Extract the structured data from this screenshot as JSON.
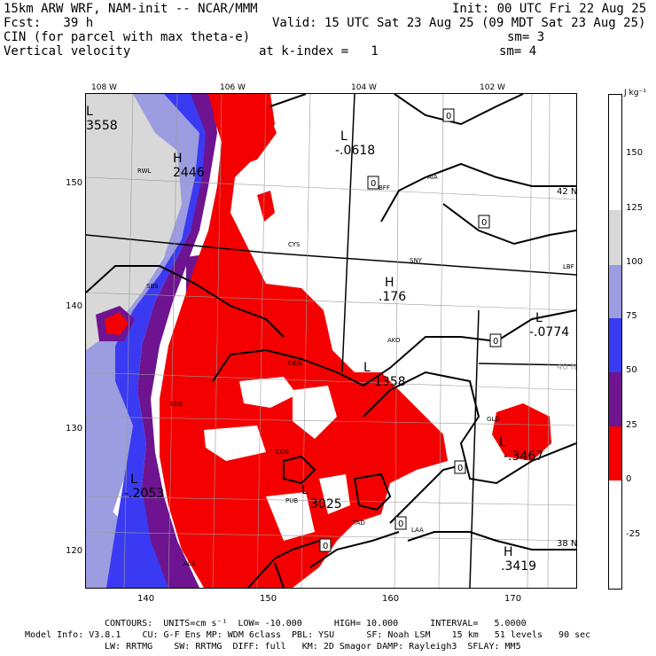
{
  "header": {
    "line1_left": "15km ARW WRF, NAM-init -- NCAR/MMM",
    "line1_right": "Init: 00 UTC Fri 22 Aug 25",
    "line2_left": "Fcst:   39 h",
    "line2_right": "Valid: 15 UTC Sat 23 Aug 25 (09 MDT Sat 23 Aug 25)",
    "line3_left": "CIN (for parcel with max theta-e)",
    "line3_right": "sm= 3",
    "line4_left": "Vertical velocity",
    "line4_mid": "at k-index =   1",
    "line4_right": "sm= 4"
  },
  "map": {
    "lon_labels": [
      "108 W",
      "106 W",
      "104 W",
      "102 W"
    ],
    "lat_labels": [
      "42 N",
      "40 N",
      "38 N"
    ],
    "x_ticks": [
      "140",
      "150",
      "160",
      "170"
    ],
    "y_ticks": [
      "150",
      "140",
      "130",
      "120"
    ],
    "stations": [
      "RWL",
      "CYS",
      "AIA",
      "SNY",
      "LBF",
      "BFF",
      "SBS",
      "AKO",
      "DEN",
      "GLD",
      "EGE",
      "COS",
      "PUB",
      "LAA",
      "ALS",
      "TAD"
    ],
    "markers": [
      {
        "kind": "L",
        "value": "3558"
      },
      {
        "kind": "H",
        "value": "2446"
      },
      {
        "kind": "L",
        "value": "-.0618"
      },
      {
        "kind": "H",
        "value": ".176"
      },
      {
        "kind": "L",
        "value": "-.0774"
      },
      {
        "kind": "L",
        "value": "1358"
      },
      {
        "kind": "L",
        "value": "-.3467"
      },
      {
        "kind": "L",
        "value": "-.2053"
      },
      {
        "kind": "L",
        "value": "3025"
      },
      {
        "kind": "H",
        "value": ".3419"
      }
    ],
    "contour_zero_label": "0"
  },
  "colorbar": {
    "unit": "J kg⁻¹",
    "labels": [
      "150",
      "125",
      "100",
      "75",
      "50",
      "25",
      "0",
      "-25"
    ],
    "colors": {
      "c125": "#d8d8d8",
      "c100": "#9c9ce0",
      "c75": "#3a3af2",
      "c50": "#6e1490",
      "c25": "#f40000",
      "c0": "#ffffff"
    }
  },
  "footer": {
    "line1": "CONTOURS:  UNITS=cm s⁻¹  LOW= -10.000      HIGH= 10.000      INTERVAL=   5.0000",
    "line2": "Model Info: V3.8.1    CU: G-F Ens MP: WDM 6class  PBL: YSU      SF: Noah LSM    15 km   51 levels   90 sec",
    "line3": "LW: RRTMG    SW: RRTMG  DIFF: full   KM: 2D Smagor DAMP: Rayleigh3  SFLAY: MM5"
  }
}
